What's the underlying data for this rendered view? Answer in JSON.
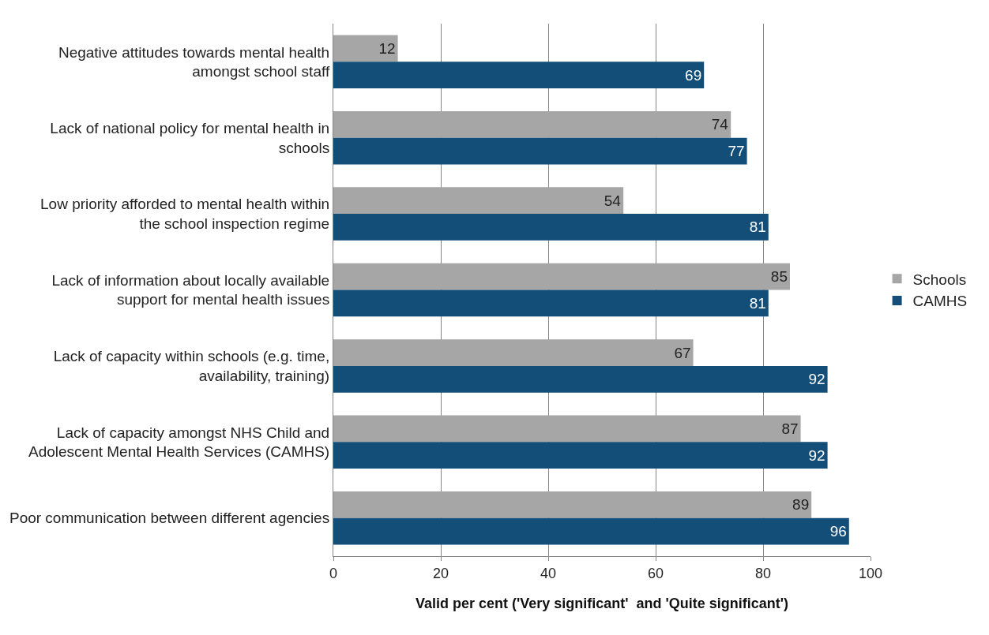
{
  "chart_data": {
    "type": "bar",
    "orientation": "horizontal",
    "xlabel": "Valid per cent ('Very significant'  and 'Quite significant')",
    "categories": [
      "Negative attitudes towards mental health amongst school staff",
      "Lack of national policy for mental health in schools",
      "Low priority afforded to mental health within the school inspection regime",
      "Lack of information about locally available support for mental health issues",
      "Lack of capacity within schools (e.g. time, availability, training)",
      "Lack of capacity amongst NHS Child and Adolescent Mental Health Services (CAMHS)",
      "Poor communication between different agencies"
    ],
    "series": [
      {
        "name": "Schools",
        "color": "#a6a6a6",
        "values": [
          12,
          74,
          54,
          85,
          67,
          87,
          89
        ]
      },
      {
        "name": "CAMHS",
        "color": "#124e78",
        "values": [
          69,
          77,
          81,
          81,
          92,
          92,
          96
        ]
      }
    ],
    "xlim": [
      0,
      100
    ],
    "xticks": [
      0,
      20,
      40,
      60,
      80,
      100
    ],
    "grid": "x",
    "legend": "right",
    "data_labels": true
  }
}
